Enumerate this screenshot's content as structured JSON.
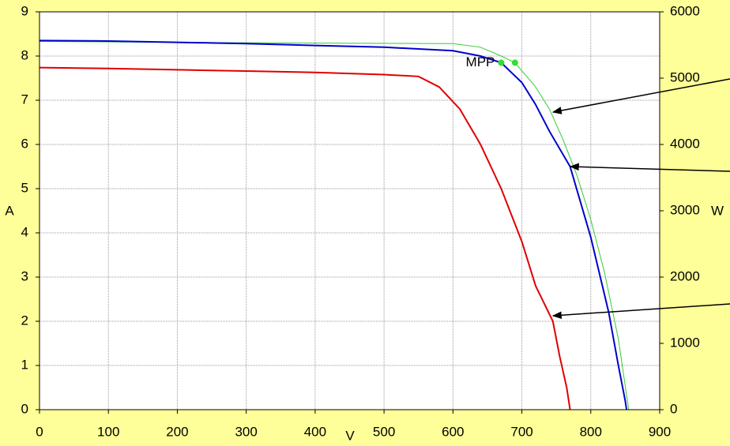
{
  "chart_data": {
    "type": "line",
    "xlabel": "V",
    "ylabel": "A",
    "y2label": "W",
    "xlim": [
      0,
      900
    ],
    "xticks": [
      0,
      100,
      200,
      300,
      400,
      500,
      600,
      700,
      800,
      900
    ],
    "ylim": [
      0,
      9
    ],
    "yticks": [
      0,
      1,
      2,
      3,
      4,
      5,
      6,
      7,
      8,
      9
    ],
    "y2lim": [
      0,
      6000
    ],
    "y2ticks": [
      0,
      1000,
      2000,
      3000,
      4000,
      5000,
      6000
    ],
    "grid": true,
    "series": [
      {
        "color": "#33cc33",
        "width": 1,
        "x": [
          0,
          300,
          600,
          640,
          670,
          690,
          720,
          740,
          760,
          780,
          800,
          820,
          840,
          855
        ],
        "values": [
          8.33,
          8.3,
          8.28,
          8.2,
          8.0,
          7.85,
          7.3,
          6.8,
          6.1,
          5.3,
          4.3,
          3.1,
          1.6,
          0
        ]
      },
      {
        "color": "#0000cc",
        "width": 2,
        "x": [
          0,
          100,
          200,
          300,
          400,
          500,
          600,
          640,
          670,
          700,
          720,
          740,
          770,
          800,
          826,
          840,
          850,
          852
        ],
        "values": [
          8.35,
          8.34,
          8.31,
          8.28,
          8.24,
          8.2,
          8.12,
          8.0,
          7.85,
          7.4,
          6.9,
          6.3,
          5.5,
          3.9,
          2.2,
          1.0,
          0.2,
          0
        ]
      },
      {
        "color": "#e00000",
        "width": 2,
        "x": [
          0,
          100,
          200,
          300,
          400,
          500,
          550,
          580,
          610,
          640,
          670,
          700,
          720,
          745,
          755,
          765,
          770
        ],
        "values": [
          7.74,
          7.72,
          7.69,
          7.66,
          7.63,
          7.58,
          7.54,
          7.3,
          6.8,
          6.0,
          5.0,
          3.8,
          2.8,
          2.0,
          1.2,
          0.5,
          0
        ]
      },
      {
        "name": "MPP",
        "color": "#33dd33",
        "markers": true,
        "x": [
          670,
          690
        ],
        "values": [
          7.85,
          7.85
        ]
      }
    ]
  }
}
